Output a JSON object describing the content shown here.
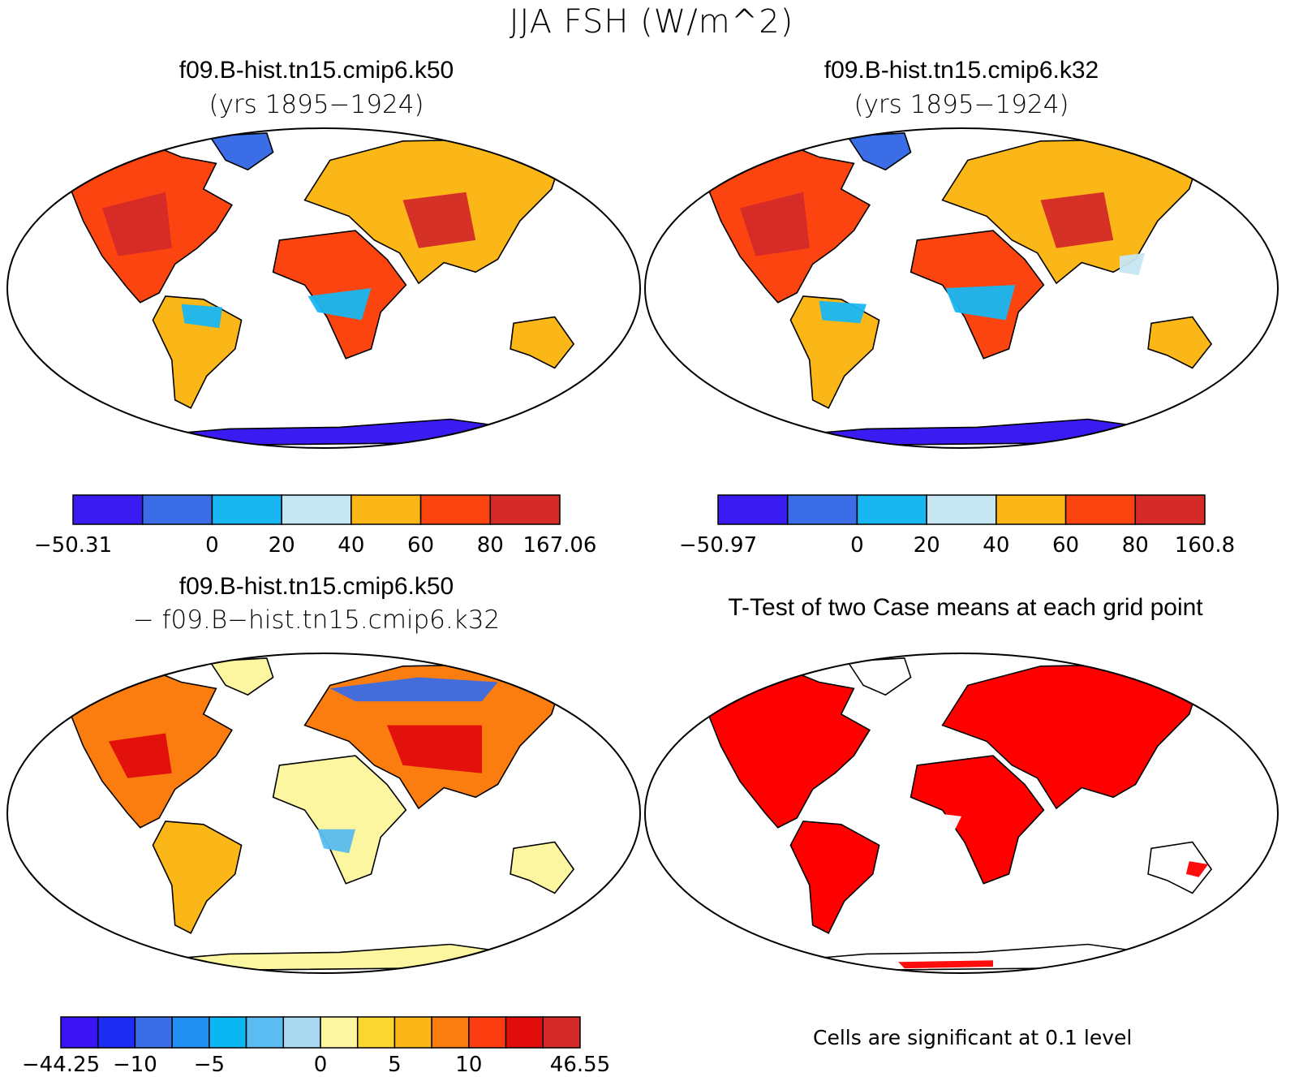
{
  "title": "JJA FSH (W/m^2)",
  "panels": [
    {
      "id": "k50",
      "title": "f09.B-hist.tn15.cmip6.k50",
      "subtitle": "(yrs 1895−1924)",
      "colorbar": {
        "colors": [
          "#3a1cf2",
          "#3a6de6",
          "#18b7f2",
          "#c6e6f2",
          "#fbb617",
          "#fb4410",
          "#d42a28"
        ],
        "tick_labels": [
          "−50.31",
          "",
          "0",
          "20",
          "40",
          "60",
          "80",
          "167.06"
        ]
      }
    },
    {
      "id": "k32",
      "title": "f09.B-hist.tn15.cmip6.k32",
      "subtitle": "(yrs 1895−1924)",
      "colorbar": {
        "colors": [
          "#3a1cf2",
          "#3a6de6",
          "#18b7f2",
          "#c6e6f2",
          "#fbb617",
          "#fb4410",
          "#d42a28"
        ],
        "tick_labels": [
          "−50.97",
          "",
          "0",
          "20",
          "40",
          "60",
          "80",
          "160.8"
        ]
      }
    },
    {
      "id": "diff",
      "title": "f09.B-hist.tn15.cmip6.k50",
      "subtitle": "− f09.B−hist.tn15.cmip6.k32",
      "colorbar": {
        "colors": [
          "#3a14f2",
          "#1c2cf2",
          "#3a6de6",
          "#2290f2",
          "#0ab7f2",
          "#5abcf0",
          "#a9d8f0",
          "#fdf6a0",
          "#fbd630",
          "#fbb617",
          "#fb7d10",
          "#fb3d10",
          "#e20c0c",
          "#d42a2a"
        ],
        "tick_labels": [
          "−44.25",
          "",
          "−10",
          "",
          "−5",
          "",
          "",
          "0",
          "",
          "5",
          "",
          "10",
          "",
          "",
          "46.55"
        ]
      }
    },
    {
      "id": "ttest",
      "title": "T-Test of two Case means at each grid point",
      "note": "Cells are significant at 0.1 level",
      "signif_color": "#ff0000"
    }
  ]
}
